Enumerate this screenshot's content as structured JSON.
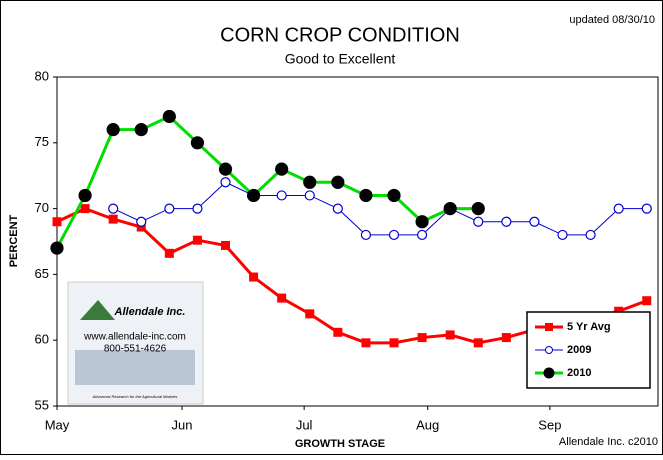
{
  "chart_data": {
    "type": "line",
    "title": "CORN CROP CONDITION",
    "subtitle": "Good to Excellent",
    "note": "updated 08/30/10",
    "ylabel": "PERCENT",
    "xlabel": "GROWTH STAGE",
    "credit": "Allendale Inc. c2010",
    "logo": {
      "name": "Allendale Inc.",
      "url": "www.allendale-inc.com",
      "phone": "800-551-4626",
      "tagline": "Advanced Research for the Agricultural Markets"
    },
    "x": [
      0,
      1,
      2,
      3,
      4,
      5,
      6,
      7,
      8,
      9,
      10,
      11,
      12,
      13,
      14,
      15,
      16,
      17,
      18,
      19,
      20,
      21
    ],
    "xlim": [
      0,
      21.4
    ],
    "xticks": [
      {
        "value": 0,
        "label": "May"
      },
      {
        "value": 4.45,
        "label": "Jun"
      },
      {
        "value": 8.8,
        "label": "Jul"
      },
      {
        "value": 13.2,
        "label": "Aug"
      },
      {
        "value": 17.55,
        "label": "Sep"
      }
    ],
    "ylim": [
      55,
      80
    ],
    "yticks": [
      55,
      60,
      65,
      70,
      75,
      80
    ],
    "grid": false,
    "legend": "lower right",
    "series": [
      {
        "name": "5 Yr Avg",
        "color": "#ff0000",
        "marker": "square",
        "values": [
          69,
          70,
          69.2,
          68.6,
          66.6,
          67.6,
          67.2,
          64.8,
          63.2,
          62,
          60.6,
          59.8,
          59.8,
          60.2,
          60.4,
          59.8,
          60.2,
          60.8,
          61.2,
          61.6,
          62.2,
          63
        ]
      },
      {
        "name": "2009",
        "color": "#0000cc",
        "marker": "open-circle",
        "values": [
          null,
          null,
          70,
          69,
          70,
          70,
          72,
          71,
          71,
          71,
          70,
          68,
          68,
          68,
          70,
          69,
          69,
          69,
          68,
          68,
          70,
          70
        ]
      },
      {
        "name": "2010",
        "color": "#00dd00",
        "marker": "black-circle",
        "values": [
          67,
          71,
          76,
          76,
          77,
          75,
          73,
          71,
          73,
          72,
          72,
          71,
          71,
          69,
          70,
          70,
          null,
          null,
          null,
          null,
          null,
          null
        ]
      }
    ]
  }
}
